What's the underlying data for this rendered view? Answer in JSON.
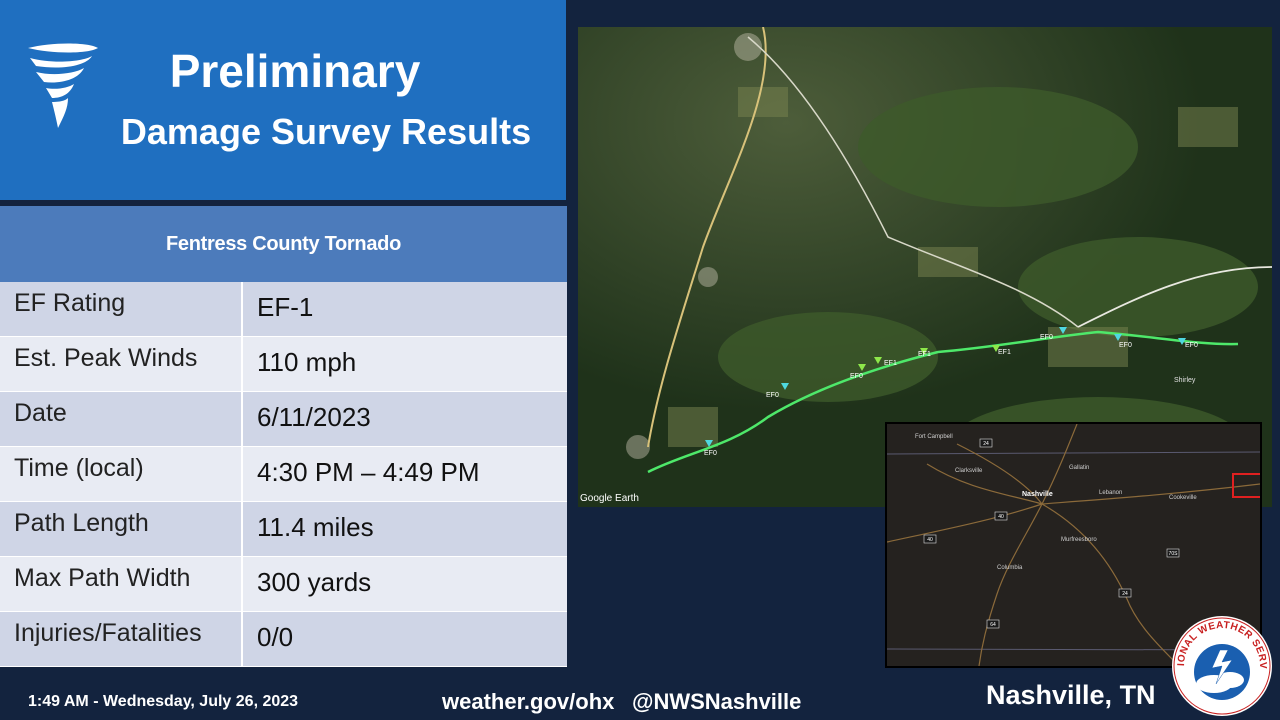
{
  "header": {
    "title": "Preliminary",
    "subtitle": "Damage Survey Results"
  },
  "table": {
    "title": "Fentress County Tornado",
    "rows": [
      {
        "label": "EF Rating",
        "value": "EF-1"
      },
      {
        "label": "Est. Peak Winds",
        "value": "110 mph"
      },
      {
        "label": "Date",
        "value": "6/11/2023"
      },
      {
        "label": "Time (local)",
        "value": "4:30 PM – 4:49 PM"
      },
      {
        "label": "Path Length",
        "value": "11.4 miles"
      },
      {
        "label": "Max Path Width",
        "value": "300 yards"
      },
      {
        "label": "Injuries/Fatalities",
        "value": "0/0"
      }
    ]
  },
  "map": {
    "credit": "Google Earth",
    "markers": [
      "EF0",
      "EF0",
      "EF0",
      "EF1",
      "EF1",
      "EF1",
      "EF0",
      "EF0",
      "EF0"
    ],
    "place_label": "Shirley"
  },
  "inset": {
    "cities": [
      "Fort Campbell",
      "Clarksville",
      "Gallatin",
      "Nashville",
      "Lebanon",
      "Cookeville",
      "Murfreesboro",
      "Columbia"
    ],
    "highway_shields": [
      "24",
      "40",
      "40",
      "24",
      "70S",
      "64"
    ]
  },
  "footer": {
    "timestamp": "1:49 AM - Wednesday, July 26, 2023",
    "website": "weather.gov/ohx",
    "twitter": "@NWSNashville",
    "office": "Nashville, TN"
  },
  "logo": {
    "text": "NATIONAL WEATHER SERVICE"
  },
  "colors": {
    "background": "#13233e",
    "header": "#1f6fc0",
    "table_title": "#4c7bbb",
    "row_dark": "#cfd5e6",
    "row_light": "#e8ebf3",
    "track": "#4ee86a",
    "inset_box": "#e02020"
  }
}
